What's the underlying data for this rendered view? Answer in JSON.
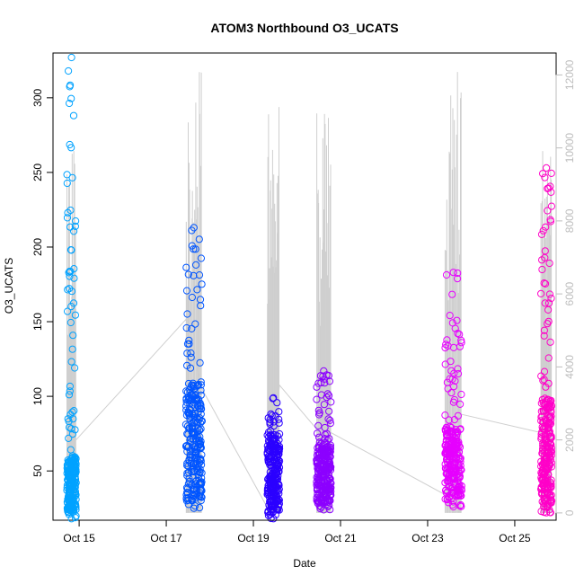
{
  "chart_data": {
    "type": "scatter",
    "title": "ATOM3 Northbound O3_UCATS",
    "xlabel": "Date",
    "ylabel": "O3_UCATS",
    "y2label": "",
    "grid": false,
    "x_ticks": [
      "Oct 15",
      "Oct 17",
      "Oct 19",
      "Oct 21",
      "Oct 23",
      "Oct 25"
    ],
    "x_tick_days": [
      15,
      17,
      19,
      21,
      23,
      25
    ],
    "xlim": [
      14.4,
      25.95
    ],
    "ylim": [
      17,
      330
    ],
    "y_ticks": [
      50,
      100,
      150,
      200,
      250,
      300
    ],
    "y2lim": [
      -200,
      12600
    ],
    "y2_ticks": [
      0,
      2000,
      4000,
      6000,
      8000,
      10000,
      12000
    ],
    "y2_series_color": "#bdbdbd",
    "flights": [
      {
        "start": 14.72,
        "end": 14.93,
        "color": "#00a2ff",
        "o3_min": 18,
        "o3_max": 327,
        "o3_core": [
          22,
          60
        ],
        "alt_max": 10200
      },
      {
        "start": 17.45,
        "end": 17.82,
        "color": "#0055ff",
        "o3_min": 25,
        "o3_max": 213,
        "o3_core": [
          30,
          110
        ],
        "alt_max": 12400
      },
      {
        "start": 19.32,
        "end": 19.6,
        "color": "#2b00ff",
        "o3_min": 18,
        "o3_max": 99,
        "o3_core": [
          22,
          75
        ],
        "alt_max": 12000
      },
      {
        "start": 20.45,
        "end": 20.78,
        "color": "#8c00ff",
        "o3_min": 24,
        "o3_max": 117,
        "o3_core": [
          28,
          70
        ],
        "alt_max": 11000
      },
      {
        "start": 23.4,
        "end": 23.78,
        "color": "#e600ff",
        "o3_min": 26,
        "o3_max": 183,
        "o3_core": [
          30,
          80
        ],
        "alt_max": 12100
      },
      {
        "start": 25.6,
        "end": 25.85,
        "color": "#ff00c8",
        "o3_min": 22,
        "o3_max": 253,
        "o3_core": [
          25,
          100
        ],
        "alt_max": 10000
      }
    ],
    "gap_line_points": [
      {
        "x": 14.93,
        "alt": 2000
      },
      {
        "x": 17.45,
        "alt": 5300
      },
      {
        "x": 17.82,
        "alt": 3400
      },
      {
        "x": 19.32,
        "alt": 150
      },
      {
        "x": 19.6,
        "alt": 3500
      },
      {
        "x": 20.45,
        "alt": 2300
      },
      {
        "x": 20.78,
        "alt": 2200
      },
      {
        "x": 23.4,
        "alt": 500
      },
      {
        "x": 23.78,
        "alt": 2700
      },
      {
        "x": 25.6,
        "alt": 2200
      }
    ]
  }
}
